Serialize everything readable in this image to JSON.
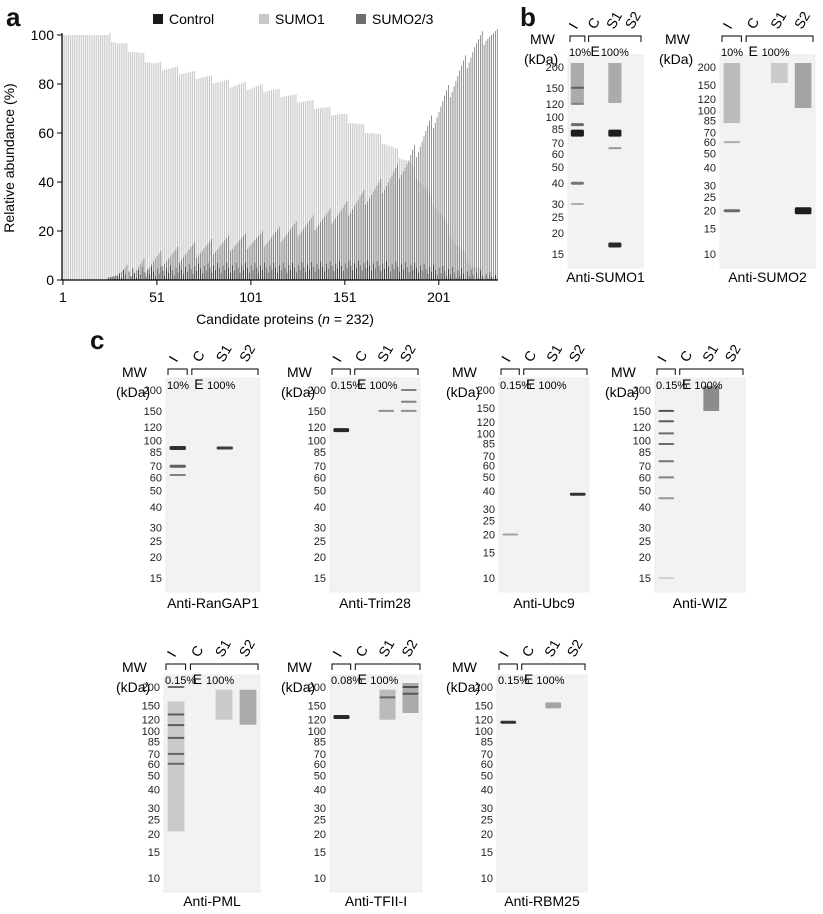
{
  "panels": {
    "a": "a",
    "b": "b",
    "c": "c"
  },
  "chart_data": {
    "type": "bar",
    "n": 232,
    "xlabel": "Candidate proteins (n = 232)",
    "ylabel": "Relative abundance (%)",
    "ylim": [
      0,
      100
    ],
    "xticks": [
      1,
      51,
      101,
      151,
      201
    ],
    "yticks": [
      0,
      20,
      40,
      60,
      80,
      100
    ],
    "legend_position": "top",
    "series": [
      {
        "name": "Control",
        "color": "#1a1a1a",
        "anchors": [
          [
            1,
            0
          ],
          [
            24,
            0
          ],
          [
            25,
            1
          ],
          [
            40,
            3
          ],
          [
            80,
            5
          ],
          [
            120,
            5
          ],
          [
            160,
            6
          ],
          [
            190,
            5
          ],
          [
            210,
            3
          ],
          [
            232,
            1
          ]
        ]
      },
      {
        "name": "SUMO1",
        "color": "#c8c8c8",
        "anchors": [
          [
            1,
            100
          ],
          [
            25,
            100
          ],
          [
            30,
            97
          ],
          [
            40,
            93
          ],
          [
            50,
            88
          ],
          [
            70,
            84
          ],
          [
            90,
            80
          ],
          [
            110,
            78
          ],
          [
            130,
            73
          ],
          [
            150,
            67
          ],
          [
            170,
            58
          ],
          [
            185,
            48
          ],
          [
            200,
            30
          ],
          [
            210,
            15
          ],
          [
            220,
            5
          ],
          [
            232,
            0
          ]
        ]
      },
      {
        "name": "SUMO2/3",
        "color": "#6e6e6e",
        "anchors": [
          [
            1,
            0
          ],
          [
            24,
            0
          ],
          [
            25,
            1
          ],
          [
            40,
            4
          ],
          [
            50,
            8
          ],
          [
            70,
            12
          ],
          [
            90,
            15
          ],
          [
            110,
            17
          ],
          [
            130,
            22
          ],
          [
            150,
            28
          ],
          [
            170,
            38
          ],
          [
            185,
            48
          ],
          [
            200,
            68
          ],
          [
            210,
            82
          ],
          [
            220,
            95
          ],
          [
            226,
            100
          ],
          [
            232,
            100
          ]
        ]
      }
    ]
  },
  "blots": [
    {
      "id": "b-sumo1",
      "label": "Anti-SUMO1",
      "lanes": [
        "I",
        "C",
        "S1",
        "S2"
      ],
      "load_input": "10%",
      "load_eluate_letter": "E",
      "load_eluate": "100%",
      "mw": [
        "200",
        "150",
        "120",
        "100",
        "85",
        "70",
        "60",
        "50",
        "40",
        "30",
        "25",
        "20",
        "15"
      ]
    },
    {
      "id": "b-sumo2",
      "label": "Anti-SUMO2",
      "lanes": [
        "I",
        "C",
        "S1",
        "S2"
      ],
      "load_input": "10%",
      "load_eluate_letter": "E",
      "load_eluate": "100%",
      "mw": [
        "200",
        "150",
        "120",
        "100",
        "85",
        "70",
        "60",
        "50",
        "40",
        "30",
        "25",
        "20",
        "15",
        "10"
      ]
    },
    {
      "id": "c-rangap1",
      "label": "Anti-RanGAP1",
      "lanes": [
        "I",
        "C",
        "S1",
        "S2"
      ],
      "load_input": "10%",
      "load_eluate_letter": "E",
      "load_eluate": "100%",
      "mw": [
        "200",
        "150",
        "120",
        "100",
        "85",
        "70",
        "60",
        "50",
        "40",
        "30",
        "25",
        "20",
        "15"
      ]
    },
    {
      "id": "c-trim28",
      "label": "Anti-Trim28",
      "lanes": [
        "I",
        "C",
        "S1",
        "S2"
      ],
      "load_input": "0.15%",
      "load_eluate_letter": "E",
      "load_eluate": "100%",
      "mw": [
        "200",
        "150",
        "120",
        "100",
        "85",
        "70",
        "60",
        "50",
        "40",
        "30",
        "25",
        "20",
        "15"
      ]
    },
    {
      "id": "c-ubc9",
      "label": "Anti-Ubc9",
      "lanes": [
        "I",
        "C",
        "S1",
        "S2"
      ],
      "load_input": "0.15%",
      "load_eluate_letter": "E",
      "load_eluate": "100%",
      "mw": [
        "200",
        "150",
        "120",
        "100",
        "85",
        "70",
        "60",
        "50",
        "40",
        "30",
        "25",
        "20",
        "15",
        "10"
      ]
    },
    {
      "id": "c-wiz",
      "label": "Anti-WIZ",
      "lanes": [
        "I",
        "C",
        "S1",
        "S2"
      ],
      "load_input": "0.15%",
      "load_eluate_letter": "E",
      "load_eluate": "100%",
      "mw": [
        "200",
        "150",
        "120",
        "100",
        "85",
        "70",
        "60",
        "50",
        "40",
        "30",
        "25",
        "20",
        "15"
      ]
    },
    {
      "id": "c-pml",
      "label": "Anti-PML",
      "lanes": [
        "I",
        "C",
        "S1",
        "S2"
      ],
      "load_input": "0.15%",
      "load_eluate_letter": "E",
      "load_eluate": "100%",
      "mw": [
        "200",
        "150",
        "120",
        "100",
        "85",
        "70",
        "60",
        "50",
        "40",
        "30",
        "25",
        "20",
        "15",
        "10"
      ]
    },
    {
      "id": "c-tfii",
      "label": "Anti-TFII-I",
      "lanes": [
        "I",
        "C",
        "S1",
        "S2"
      ],
      "load_input": "0.08%",
      "load_eluate_letter": "E",
      "load_eluate": "100%",
      "mw": [
        "200",
        "150",
        "120",
        "100",
        "85",
        "70",
        "60",
        "50",
        "40",
        "30",
        "25",
        "20",
        "15",
        "10"
      ]
    },
    {
      "id": "c-rbm25",
      "label": "Anti-RBM25",
      "lanes": [
        "I",
        "C",
        "S1",
        "S2"
      ],
      "load_input": "0.15%",
      "load_eluate_letter": "E",
      "load_eluate": "100%",
      "mw": [
        "200",
        "150",
        "120",
        "100",
        "85",
        "70",
        "60",
        "50",
        "40",
        "30",
        "25",
        "20",
        "15",
        "10"
      ]
    }
  ],
  "mw_title": "MW",
  "mw_unit": "(kDa)"
}
